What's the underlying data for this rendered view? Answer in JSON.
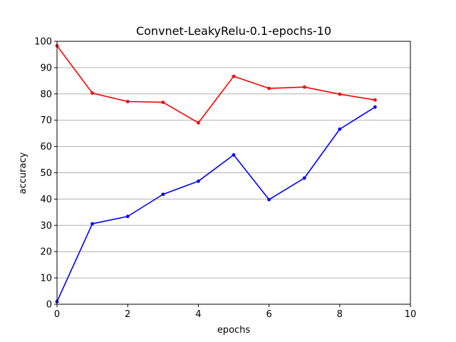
{
  "chart_data": {
    "type": "line",
    "title": "Convnet-LeakyRelu-0.1-epochs-10",
    "xlabel": "epochs",
    "ylabel": "accuracy",
    "xlim": [
      0,
      10
    ],
    "ylim": [
      0,
      100
    ],
    "xticks": [
      0,
      2,
      4,
      6,
      8,
      10
    ],
    "yticks": [
      0,
      10,
      20,
      30,
      40,
      50,
      60,
      70,
      80,
      90,
      100
    ],
    "grid": "horizontal",
    "x": [
      0,
      1,
      2,
      3,
      4,
      5,
      6,
      7,
      8,
      9
    ],
    "series": [
      {
        "color": "#ff0000",
        "values": [
          98.3,
          80.3,
          77.1,
          76.8,
          69.0,
          86.7,
          82.1,
          82.6,
          79.9,
          77.7
        ]
      },
      {
        "color": "#0000ff",
        "values": [
          1.0,
          30.6,
          33.4,
          41.8,
          46.8,
          56.8,
          39.8,
          48.0,
          66.6,
          75.0
        ]
      }
    ]
  }
}
